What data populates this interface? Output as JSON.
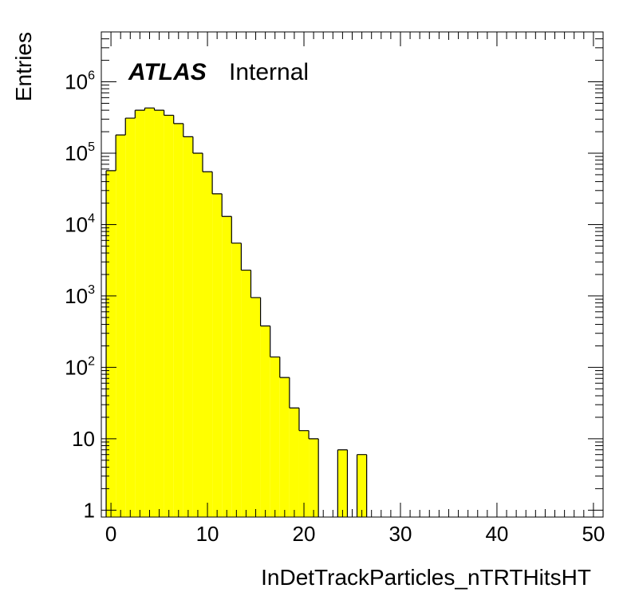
{
  "chart_data": {
    "type": "bar",
    "style": "histogram",
    "scale": "log",
    "fill_color": "#ffff00",
    "line_color": "#000000",
    "xlabel": "InDetTrackParticles_nTRTHitsHT",
    "ylabel": "Entries",
    "xlim": [
      -1,
      51
    ],
    "ylim": [
      0.8,
      5000000
    ],
    "bin_width": 1,
    "x_ticks": [
      "0",
      "10",
      "20",
      "30",
      "40",
      "50"
    ],
    "y_ticks": [
      {
        "base": "1",
        "exp": ""
      },
      {
        "base": "10",
        "exp": ""
      },
      {
        "base": "10",
        "exp": "2"
      },
      {
        "base": "10",
        "exp": "3"
      },
      {
        "base": "10",
        "exp": "4"
      },
      {
        "base": "10",
        "exp": "5"
      },
      {
        "base": "10",
        "exp": "6"
      }
    ],
    "bins": [
      {
        "x": 0,
        "value": 57000
      },
      {
        "x": 1,
        "value": 180000
      },
      {
        "x": 2,
        "value": 310000
      },
      {
        "x": 3,
        "value": 400000
      },
      {
        "x": 4,
        "value": 430000
      },
      {
        "x": 5,
        "value": 400000
      },
      {
        "x": 6,
        "value": 340000
      },
      {
        "x": 7,
        "value": 260000
      },
      {
        "x": 8,
        "value": 170000
      },
      {
        "x": 9,
        "value": 100000
      },
      {
        "x": 10,
        "value": 55000
      },
      {
        "x": 11,
        "value": 27000
      },
      {
        "x": 12,
        "value": 13000
      },
      {
        "x": 13,
        "value": 5500
      },
      {
        "x": 14,
        "value": 2300
      },
      {
        "x": 15,
        "value": 950
      },
      {
        "x": 16,
        "value": 380
      },
      {
        "x": 17,
        "value": 140
      },
      {
        "x": 18,
        "value": 72
      },
      {
        "x": 19,
        "value": 27
      },
      {
        "x": 20,
        "value": 13
      },
      {
        "x": 21,
        "value": 10
      },
      {
        "x": 22,
        "value": 0
      },
      {
        "x": 23,
        "value": 0
      },
      {
        "x": 24,
        "value": 7
      },
      {
        "x": 25,
        "value": 0
      },
      {
        "x": 26,
        "value": 6
      }
    ]
  },
  "label": {
    "experiment": "ATLAS",
    "status": "Internal"
  }
}
